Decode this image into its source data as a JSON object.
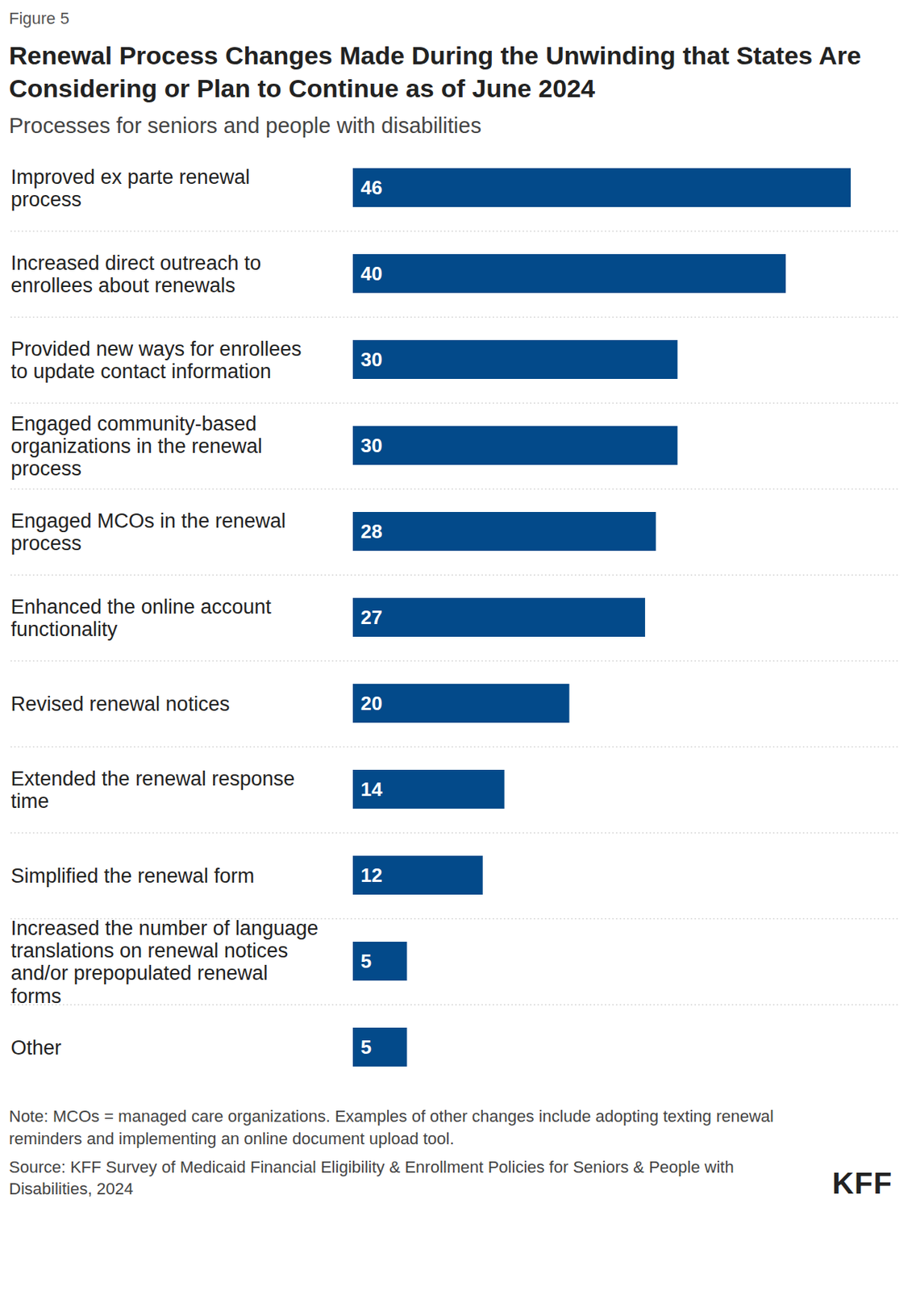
{
  "chart_data": {
    "type": "bar",
    "orientation": "horizontal",
    "figure_label": "Figure 5",
    "title": "Renewal Process Changes Made During the Unwinding that States Are Considering or Plan to Continue as of June 2024",
    "subtitle": "Processes for seniors and people with disabilities",
    "categories": [
      "Improved ex parte renewal process",
      "Increased direct outreach to enrollees about renewals",
      "Provided new ways for enrollees to update contact information",
      "Engaged community-based organizations in the renewal process",
      "Engaged MCOs in the renewal process",
      "Enhanced the online account functionality",
      "Revised renewal notices",
      "Extended the renewal response time",
      "Simplified the renewal form",
      "Increased the number of language translations on renewal notices and/or prepopulated renewal forms",
      "Other"
    ],
    "values": [
      46,
      40,
      30,
      30,
      28,
      27,
      20,
      14,
      12,
      5,
      5
    ],
    "color": "#034a8a",
    "xlim": [
      0,
      46
    ],
    "data_labels": true,
    "tick_labels": false,
    "grid": false,
    "note": "Note: MCOs = managed care organizations. Examples of other changes include adopting texting renewal reminders and implementing an online document upload tool.",
    "source": "Source: KFF Survey of Medicaid Financial Eligibility & Enrollment Policies for Seniors & People with Disabilities, 2024",
    "logo": "KFF"
  }
}
